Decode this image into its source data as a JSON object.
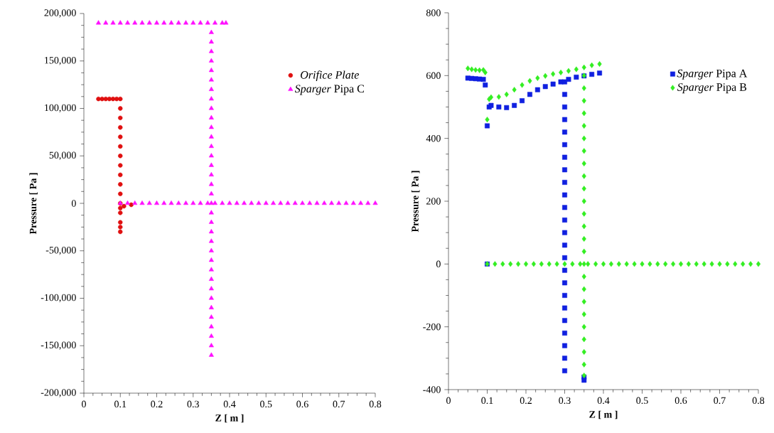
{
  "chart_data": [
    {
      "type": "scatter",
      "xlabel": "Z [ m ]",
      "ylabel": "Pressure [ Pa ]",
      "xlim": [
        0,
        0.8
      ],
      "ylim": [
        -200000,
        200000
      ],
      "xticks": [
        0,
        0.1,
        0.2,
        0.3,
        0.4,
        0.5,
        0.6,
        0.7,
        0.8
      ],
      "yticks": [
        {
          "value": -200000,
          "label": "-200,000"
        },
        {
          "value": -150000,
          "label": "-150,000"
        },
        {
          "value": -100000,
          "label": "-100,000"
        },
        {
          "value": -50000,
          "label": "-50,000"
        },
        {
          "value": 0,
          "label": "0"
        },
        {
          "value": 50000,
          "label": "50,000"
        },
        {
          "value": 100000,
          "label": "100,000"
        },
        {
          "value": 150000,
          "label": "150,000"
        },
        {
          "value": 200000,
          "label": "200,000"
        }
      ],
      "grid": false,
      "legend": "top right",
      "series": [
        {
          "name": "*Orifice Plate*",
          "color": "#e01010",
          "marker": "circle",
          "x": [
            0.04,
            0.05,
            0.06,
            0.07,
            0.08,
            0.09,
            0.1,
            0.1,
            0.1,
            0.1,
            0.1,
            0.1,
            0.1,
            0.1,
            0.1,
            0.1,
            0.1,
            0.1,
            0.1,
            0.1,
            0.1,
            0.1,
            0.1,
            0.11,
            0.13
          ],
          "values": [
            110000,
            110000,
            110000,
            110000,
            110000,
            110000,
            110000,
            100000,
            90000,
            80000,
            70000,
            60000,
            50000,
            40000,
            30000,
            20000,
            10000,
            0,
            -5000,
            -10000,
            -20000,
            -25000,
            -30000,
            -3000,
            -1500
          ]
        },
        {
          "name": "*Sparger* Pipa C",
          "color": "#ff10ff",
          "marker": "triangle",
          "x": [
            0.04,
            0.06,
            0.08,
            0.1,
            0.12,
            0.14,
            0.16,
            0.18,
            0.2,
            0.22,
            0.24,
            0.26,
            0.28,
            0.3,
            0.32,
            0.34,
            0.36,
            0.38,
            0.39,
            0.35,
            0.35,
            0.35,
            0.35,
            0.35,
            0.35,
            0.35,
            0.35,
            0.35,
            0.35,
            0.35,
            0.35,
            0.35,
            0.35,
            0.35,
            0.35,
            0.35,
            0.35,
            0.35,
            0.35,
            0.35,
            0.35,
            0.35,
            0.35,
            0.35,
            0.35,
            0.35,
            0.35,
            0.35,
            0.35,
            0.35,
            0.35,
            0.35,
            0.35,
            0.35,
            0.1,
            0.12,
            0.14,
            0.16,
            0.18,
            0.2,
            0.22,
            0.24,
            0.26,
            0.28,
            0.3,
            0.32,
            0.34,
            0.36,
            0.38,
            0.4,
            0.42,
            0.44,
            0.46,
            0.48,
            0.5,
            0.52,
            0.54,
            0.56,
            0.58,
            0.6,
            0.62,
            0.64,
            0.66,
            0.68,
            0.7,
            0.72,
            0.74,
            0.76,
            0.78,
            0.8
          ],
          "values": [
            190000,
            190000,
            190000,
            190000,
            190000,
            190000,
            190000,
            190000,
            190000,
            190000,
            190000,
            190000,
            190000,
            190000,
            190000,
            190000,
            190000,
            190000,
            190000,
            180000,
            170000,
            160000,
            150000,
            140000,
            130000,
            120000,
            110000,
            100000,
            90000,
            80000,
            70000,
            60000,
            50000,
            40000,
            30000,
            20000,
            10000,
            0,
            -10000,
            -20000,
            -30000,
            -40000,
            -50000,
            -60000,
            -70000,
            -80000,
            -90000,
            -100000,
            -110000,
            -120000,
            -130000,
            -140000,
            -150000,
            -160000,
            0,
            0,
            0,
            0,
            0,
            0,
            0,
            0,
            0,
            0,
            0,
            0,
            0,
            0,
            0,
            0,
            0,
            0,
            0,
            0,
            0,
            0,
            0,
            0,
            0,
            0,
            0,
            0,
            0,
            0,
            0,
            0,
            0,
            0,
            0,
            0
          ]
        }
      ]
    },
    {
      "type": "scatter",
      "xlabel": "Z [ m ]",
      "ylabel": "Pressure [ Pa ]",
      "xlim": [
        0,
        0.8
      ],
      "ylim": [
        -400,
        800
      ],
      "xticks": [
        0,
        0.1,
        0.2,
        0.3,
        0.4,
        0.5,
        0.6,
        0.7,
        0.8
      ],
      "yticks": [
        -400,
        -200,
        0,
        200,
        400,
        600,
        800
      ],
      "grid": false,
      "legend": "top right",
      "series": [
        {
          "name": "*Sparger* Pipa A",
          "color": "#1020e0",
          "marker": "square",
          "x": [
            0.05,
            0.06,
            0.07,
            0.08,
            0.09,
            0.095,
            0.1,
            0.105,
            0.11,
            0.13,
            0.15,
            0.17,
            0.19,
            0.21,
            0.23,
            0.25,
            0.27,
            0.29,
            0.31,
            0.33,
            0.35,
            0.37,
            0.39,
            0.3,
            0.3,
            0.3,
            0.3,
            0.3,
            0.3,
            0.3,
            0.3,
            0.3,
            0.3,
            0.3,
            0.3,
            0.3,
            0.3,
            0.3,
            0.3,
            0.3,
            0.3,
            0.3,
            0.3,
            0.3,
            0.3,
            0.3,
            0.3,
            0.35,
            0.35,
            0.1
          ],
          "values": [
            592,
            591,
            590,
            589,
            588,
            570,
            440,
            500,
            505,
            500,
            498,
            505,
            520,
            540,
            555,
            565,
            573,
            580,
            588,
            595,
            599,
            604,
            608,
            580,
            540,
            500,
            460,
            420,
            380,
            340,
            300,
            260,
            220,
            180,
            140,
            100,
            60,
            20,
            -20,
            -60,
            -100,
            -140,
            -180,
            -220,
            -260,
            -300,
            -340,
            -360,
            -370,
            0
          ]
        },
        {
          "name": "*Sparger* Pipa B",
          "color": "#33ee22",
          "marker": "diamond",
          "x": [
            0.05,
            0.06,
            0.07,
            0.08,
            0.09,
            0.095,
            0.1,
            0.105,
            0.11,
            0.13,
            0.15,
            0.17,
            0.19,
            0.21,
            0.23,
            0.25,
            0.27,
            0.29,
            0.31,
            0.33,
            0.35,
            0.37,
            0.39,
            0.35,
            0.35,
            0.35,
            0.35,
            0.35,
            0.35,
            0.35,
            0.35,
            0.35,
            0.35,
            0.35,
            0.35,
            0.35,
            0.35,
            0.35,
            0.35,
            0.35,
            0.35,
            0.35,
            0.35,
            0.35,
            0.35,
            0.35,
            0.35,
            0.35,
            0.1,
            0.12,
            0.14,
            0.16,
            0.18,
            0.2,
            0.22,
            0.24,
            0.26,
            0.28,
            0.3,
            0.32,
            0.34,
            0.36,
            0.38,
            0.4,
            0.42,
            0.44,
            0.46,
            0.48,
            0.5,
            0.52,
            0.54,
            0.56,
            0.58,
            0.6,
            0.62,
            0.64,
            0.66,
            0.68,
            0.7,
            0.72,
            0.74,
            0.76,
            0.78,
            0.8
          ],
          "values": [
            623,
            620,
            618,
            617,
            618,
            610,
            460,
            525,
            531,
            532,
            540,
            555,
            570,
            583,
            592,
            599,
            605,
            610,
            615,
            620,
            626,
            633,
            637,
            600,
            560,
            520,
            480,
            440,
            400,
            360,
            320,
            280,
            240,
            200,
            160,
            120,
            80,
            40,
            0,
            -40,
            -80,
            -120,
            -160,
            -200,
            -240,
            -280,
            -320,
            -355,
            0,
            0,
            0,
            0,
            0,
            0,
            0,
            0,
            0,
            0,
            0,
            0,
            0,
            0,
            0,
            0,
            0,
            0,
            0,
            0,
            0,
            0,
            0,
            0,
            0,
            0,
            0,
            0,
            0,
            0,
            0,
            0,
            0,
            0,
            0,
            0
          ]
        }
      ]
    }
  ]
}
